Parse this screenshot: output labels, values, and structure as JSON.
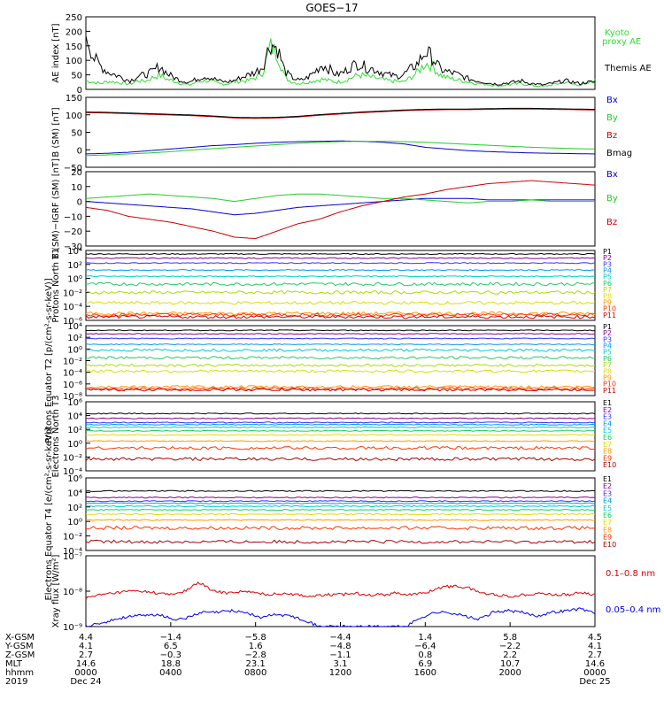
{
  "title": "GOES−17",
  "chart_data": [
    {
      "type": "line",
      "ylabel": "AE index [nT]",
      "yticks": [
        "250",
        "200",
        "150",
        "100",
        "50",
        "0"
      ],
      "ylim": [
        0,
        250
      ],
      "series": [
        {
          "name": "Kyoto proxy AE",
          "color": "#33dd33",
          "values": [
            30,
            25,
            20,
            28,
            25,
            22,
            18,
            30,
            28,
            40,
            50,
            35,
            28,
            20,
            15,
            25,
            30,
            28,
            20,
            18,
            25,
            28,
            30,
            40,
            60,
            150,
            120,
            40,
            25,
            20,
            25,
            30,
            35,
            30,
            25,
            30,
            40,
            50,
            45,
            40,
            35,
            30,
            28,
            25,
            40,
            60,
            90,
            80,
            50,
            40,
            35,
            30,
            25,
            20,
            18,
            15,
            12,
            15,
            18,
            20,
            15,
            12,
            10,
            15,
            20,
            25,
            18,
            15,
            20,
            30
          ]
        },
        {
          "name": "Themis AE",
          "color": "#000000",
          "values": [
            200,
            110,
            80,
            60,
            50,
            40,
            30,
            45,
            50,
            60,
            80,
            55,
            40,
            30,
            25,
            35,
            45,
            40,
            30,
            25,
            30,
            40,
            50,
            60,
            80,
            160,
            140,
            60,
            40,
            30,
            40,
            60,
            85,
            70,
            50,
            60,
            80,
            90,
            75,
            70,
            60,
            50,
            45,
            50,
            70,
            90,
            130,
            110,
            70,
            60,
            55,
            45,
            35,
            30,
            25,
            20,
            18,
            22,
            25,
            30,
            22,
            18,
            15,
            20,
            25,
            30,
            25,
            20,
            25,
            25
          ]
        }
      ],
      "legend": [
        "Kyoto",
        "proxy AE",
        "Themis AE"
      ]
    },
    {
      "type": "line",
      "ylabel": "B (SM) [nT]",
      "yticks": [
        "150",
        "100",
        "50",
        "0",
        "−50"
      ],
      "ylim": [
        -60,
        150
      ],
      "series": [
        {
          "name": "Bx",
          "color": "#0000cc",
          "values": [
            -20,
            -18,
            -15,
            -10,
            -5,
            0,
            5,
            8,
            12,
            15,
            17,
            18,
            19,
            18,
            15,
            10,
            0,
            -5,
            -10,
            -13,
            -15,
            -17,
            -18,
            -19,
            -20
          ]
        },
        {
          "name": "By",
          "color": "#22cc22",
          "values": [
            -25,
            -23,
            -20,
            -17,
            -13,
            -8,
            -4,
            0,
            4,
            8,
            12,
            15,
            17,
            18,
            18,
            17,
            15,
            12,
            9,
            6,
            3,
            0,
            -2,
            -4,
            -5
          ]
        },
        {
          "name": "Bz",
          "color": "#cc0000",
          "values": [
            104,
            103,
            101,
            99,
            97,
            95,
            92,
            88,
            87,
            88,
            91,
            96,
            100,
            104,
            107,
            110,
            112,
            113,
            113,
            114,
            115,
            115,
            114,
            113,
            112
          ]
        },
        {
          "name": "Bmag",
          "color": "#000000",
          "values": [
            106,
            105,
            103,
            101,
            99,
            97,
            94,
            90,
            89,
            90,
            93,
            98,
            102,
            106,
            109,
            112,
            114,
            115,
            115,
            116,
            117,
            117,
            116,
            115,
            114
          ]
        }
      ],
      "legend": [
        "Bx",
        "By",
        "Bz",
        "Bmag"
      ]
    },
    {
      "type": "line",
      "ylabel": "B (SM)−IGRF (SM) [nT]",
      "yticks": [
        "20",
        "10",
        "0",
        "−10",
        "−20",
        "−30"
      ],
      "ylim": [
        -30,
        20
      ],
      "series": [
        {
          "name": "Bx",
          "color": "#0000cc",
          "values": [
            0,
            -1,
            -2,
            -3,
            -4,
            -5,
            -7,
            -9,
            -8,
            -6,
            -4,
            -3,
            -2,
            -1,
            0,
            1,
            2,
            2,
            2,
            1,
            1,
            1,
            1,
            1,
            1
          ]
        },
        {
          "name": "By",
          "color": "#22cc22",
          "values": [
            2,
            3,
            4,
            5,
            4,
            3,
            2,
            0,
            2,
            4,
            5,
            5,
            4,
            3,
            2,
            2,
            1,
            0,
            -1,
            0,
            0,
            1,
            0,
            0,
            0
          ]
        },
        {
          "name": "Bz",
          "color": "#cc0000",
          "values": [
            -4,
            -6,
            -10,
            -12,
            -14,
            -17,
            -20,
            -24,
            -25,
            -20,
            -15,
            -12,
            -7,
            -3,
            0,
            3,
            5,
            8,
            10,
            12,
            13,
            14,
            13,
            12,
            11
          ]
        }
      ],
      "legend": [
        "Bx",
        "By",
        "Bz"
      ]
    },
    {
      "type": "line",
      "ylabel": "Protons North T1",
      "yticks": [
        "10⁴",
        "10²",
        "10⁰",
        "10⁻²",
        "10⁻⁴",
        "10⁻⁶"
      ],
      "ylim": [
        -6,
        4
      ],
      "legend": [
        "P1",
        "P2",
        "P3",
        "P4",
        "P5",
        "P6",
        "P7",
        "P8",
        "P9",
        "P10",
        "P11"
      ],
      "series": [
        {
          "name": "P1",
          "color": "#000000",
          "level": 3.5
        },
        {
          "name": "P2",
          "color": "#880088",
          "level": 2.9
        },
        {
          "name": "P3",
          "color": "#3333ff",
          "level": 2.2
        },
        {
          "name": "P4",
          "color": "#0099ee",
          "level": 1.2
        },
        {
          "name": "P5",
          "color": "#00cccc",
          "level": 0.3
        },
        {
          "name": "P6",
          "color": "#22cc66",
          "level": -0.8
        },
        {
          "name": "P7",
          "color": "#aadd00",
          "level": -2.0
        },
        {
          "name": "P8",
          "color": "#dddd00",
          "level": -3.5
        },
        {
          "name": "P9",
          "color": "#ff9900",
          "level": -5.0
        },
        {
          "name": "P10",
          "color": "#ff3300",
          "level": -5.2
        },
        {
          "name": "P11",
          "color": "#cc0000",
          "level": -5.5
        }
      ]
    },
    {
      "type": "line",
      "ylabel": "Protons Equator T2 [p/(cm²-s-sr-keV)]",
      "yticks": [
        "10⁴",
        "10²",
        "10⁰",
        "10⁻²",
        "10⁻⁴",
        "10⁻⁶",
        "10⁻⁸"
      ],
      "ylim": [
        -8,
        4
      ],
      "legend": [
        "P1",
        "P2",
        "P3",
        "P4",
        "P5",
        "P6",
        "P7",
        "P8",
        "P9",
        "P10",
        "P11"
      ],
      "series": [
        {
          "name": "P1",
          "color": "#000000",
          "level": 3.2
        },
        {
          "name": "P2",
          "color": "#880088",
          "level": 2.6
        },
        {
          "name": "P3",
          "color": "#3333ff",
          "level": 1.8
        },
        {
          "name": "P4",
          "color": "#0099ee",
          "level": 0.8
        },
        {
          "name": "P5",
          "color": "#00cccc",
          "level": -0.2
        },
        {
          "name": "P6",
          "color": "#22cc66",
          "level": -1.5
        },
        {
          "name": "P7",
          "color": "#aadd00",
          "level": -2.8
        },
        {
          "name": "P8",
          "color": "#dddd00",
          "level": -3.8
        },
        {
          "name": "P9",
          "color": "#ff9900",
          "level": -6.5
        },
        {
          "name": "P10",
          "color": "#ff3300",
          "level": -6.8
        },
        {
          "name": "P11",
          "color": "#cc0000",
          "level": -7.0
        }
      ]
    },
    {
      "type": "line",
      "ylabel": "Electrons North T3",
      "yticks": [
        "10⁶",
        "10⁴",
        "10²",
        "10⁰",
        "10⁻²",
        "10⁻⁴"
      ],
      "ylim": [
        -4,
        6
      ],
      "legend": [
        "E1",
        "E2",
        "E3",
        "E4",
        "E5",
        "E6",
        "E7",
        "E8",
        "E9",
        "E10"
      ],
      "series": [
        {
          "name": "E1",
          "color": "#000000",
          "level": 4.3
        },
        {
          "name": "E2",
          "color": "#880088",
          "level": 3.6
        },
        {
          "name": "E3",
          "color": "#3333ff",
          "level": 3.0
        },
        {
          "name": "E4",
          "color": "#0099ee",
          "level": 2.7
        },
        {
          "name": "E5",
          "color": "#00cccc",
          "level": 2.3
        },
        {
          "name": "E6",
          "color": "#22cc66",
          "level": 1.8
        },
        {
          "name": "E7",
          "color": "#dddd00",
          "level": 1.2
        },
        {
          "name": "E8",
          "color": "#ff9900",
          "level": 0.3
        },
        {
          "name": "E9",
          "color": "#ff3300",
          "level": -0.7
        },
        {
          "name": "E10",
          "color": "#aa0000",
          "level": -2.3
        }
      ]
    },
    {
      "type": "line",
      "ylabel": "Electrons Equator T4 [e/(cm²-s-sr-keV)]",
      "yticks": [
        "10⁶",
        "10⁴",
        "10²",
        "10⁰",
        "10⁻²",
        "10⁻⁴"
      ],
      "ylim": [
        -4,
        6
      ],
      "legend": [
        "E1",
        "E2",
        "E3",
        "E4",
        "E5",
        "E6",
        "E7",
        "E8",
        "E9",
        "E10"
      ],
      "series": [
        {
          "name": "E1",
          "color": "#000000",
          "level": 4.2
        },
        {
          "name": "E2",
          "color": "#880088",
          "level": 3.3
        },
        {
          "name": "E3",
          "color": "#3333ff",
          "level": 2.8
        },
        {
          "name": "E4",
          "color": "#0099ee",
          "level": 2.5
        },
        {
          "name": "E5",
          "color": "#00cccc",
          "level": 2.1
        },
        {
          "name": "E6",
          "color": "#22cc66",
          "level": 1.6
        },
        {
          "name": "E7",
          "color": "#dddd00",
          "level": 1.0
        },
        {
          "name": "E8",
          "color": "#ff9900",
          "level": 0.2
        },
        {
          "name": "E9",
          "color": "#ff3300",
          "level": -0.9
        },
        {
          "name": "E10",
          "color": "#aa0000",
          "level": -2.8
        }
      ]
    },
    {
      "type": "line",
      "ylabel": "Xray flux [W/m²]",
      "yticks": [
        "10⁻⁷",
        "10⁻⁸",
        "10⁻⁹"
      ],
      "ylim": [
        -9,
        -7
      ],
      "legend": [
        "0.1–0.8 nm",
        "0.05–0.4 nm"
      ],
      "series": [
        {
          "name": "0.1–0.8 nm",
          "color": "#dd0000",
          "values": [
            -8.2,
            -8.1,
            -8.05,
            -8.0,
            -8.0,
            -8.05,
            -8.1,
            -8.0,
            -7.75,
            -8.0,
            -8.05,
            -8.0,
            -8.05,
            -8.1,
            -8.05,
            -8.1,
            -8.15,
            -8.1,
            -8.1,
            -8.05,
            -8.1,
            -8.1,
            -8.05,
            -8.1,
            -8.05,
            -7.9,
            -7.85,
            -7.9,
            -8.05,
            -8.1,
            -8.15,
            -8.1,
            -8.05,
            -8.1,
            -8.1,
            -8.05,
            -8.1
          ]
        },
        {
          "name": "0.05–0.4 nm",
          "color": "#0000ee",
          "values": [
            -9.0,
            -8.9,
            -8.8,
            -8.7,
            -8.7,
            -8.65,
            -8.8,
            -8.75,
            -8.6,
            -8.6,
            -8.55,
            -8.6,
            -8.75,
            -8.65,
            -8.7,
            -8.8,
            -9.0,
            -9.0,
            -9.0,
            -9.0,
            -9.0,
            -9.0,
            -9.0,
            -8.75,
            -8.6,
            -8.6,
            -8.7,
            -8.8,
            -8.6,
            -8.55,
            -8.6,
            -8.7,
            -8.6,
            -8.55,
            -8.5,
            -8.6
          ]
        }
      ]
    }
  ],
  "axis_table": {
    "labels": [
      "X-GSM",
      "Y-GSM",
      "Z-GSM",
      "MLT",
      "hhmm",
      "2019"
    ],
    "columns": [
      [
        "4.4",
        "4.1",
        "2.7",
        "14.6",
        "0000",
        "Dec 24"
      ],
      [
        "−1.4",
        "6.5",
        "−0.3",
        "18.8",
        "0400",
        ""
      ],
      [
        "−5.8",
        "1.6",
        "−2.8",
        "23.1",
        "0800",
        ""
      ],
      [
        "−4.4",
        "−4.8",
        "−1.1",
        "3.1",
        "1200",
        ""
      ],
      [
        "1.4",
        "−6.4",
        "0.8",
        "6.9",
        "1600",
        ""
      ],
      [
        "5.8",
        "−2.2",
        "2.2",
        "10.7",
        "2000",
        ""
      ],
      [
        "4.5",
        "4.1",
        "2.7",
        "14.6",
        "0000",
        "Dec 25"
      ]
    ]
  }
}
